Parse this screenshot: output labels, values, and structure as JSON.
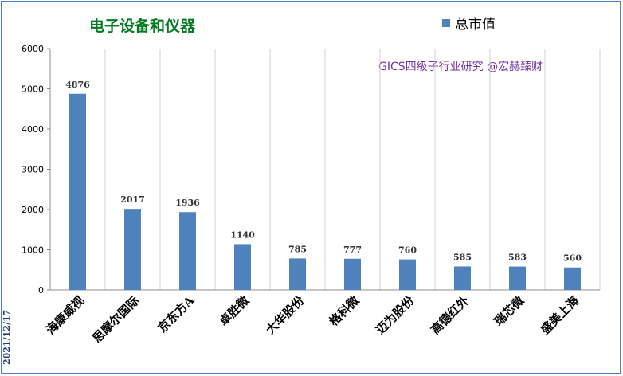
{
  "chart_data": {
    "type": "bar",
    "title": "电子设备和仪器",
    "legend": "总市值",
    "annotation": "GICS四级子行业研究 @宏赫臻财",
    "date": "2021/12/17",
    "categories": [
      "海康威视",
      "思摩尔国际",
      "京东方A",
      "卓胜微",
      "大华股份",
      "格科微",
      "迈为股份",
      "高德红外",
      "瑞芯微",
      "盛美上海"
    ],
    "values": [
      4876,
      2017,
      1936,
      1140,
      785,
      777,
      760,
      585,
      583,
      560
    ],
    "yticks": [
      "0",
      "1000",
      "2000",
      "3000",
      "4000",
      "5000",
      "6000"
    ],
    "ylim": [
      0,
      6000
    ],
    "grid": "vertical category separators",
    "legend_position": "top-right",
    "bar_color": "#4f81bd"
  }
}
